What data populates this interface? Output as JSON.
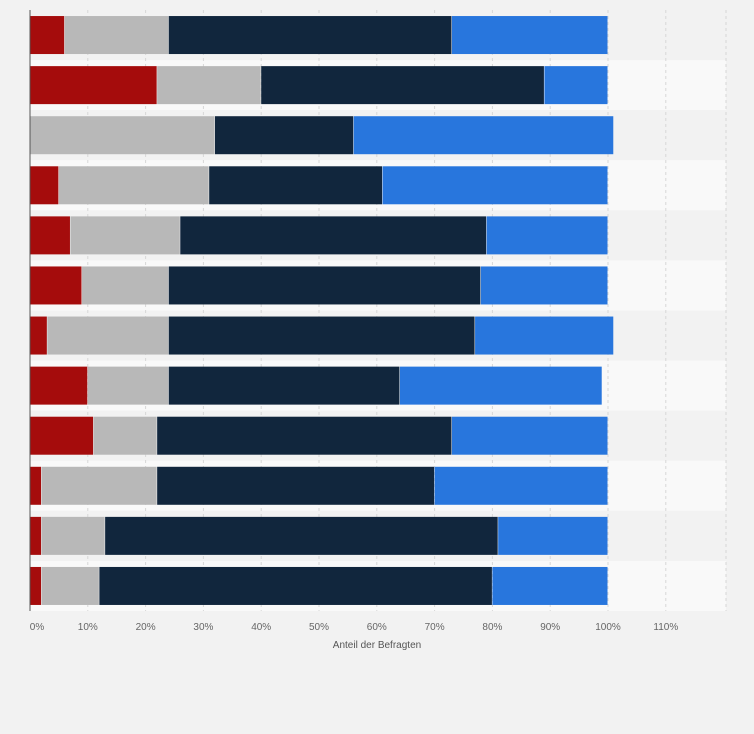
{
  "chart_data": {
    "type": "bar",
    "orientation": "horizontal",
    "stacked": true,
    "xlabel": "Anteil der Befragten",
    "xlim": [
      0,
      120
    ],
    "xticks": [
      0,
      10,
      20,
      30,
      40,
      50,
      60,
      70,
      80,
      90,
      100,
      110
    ],
    "tick_suffix": "%",
    "grid": true,
    "colors": [
      "#a50c0c",
      "#b8b8b8",
      "#11263d",
      "#2876dd"
    ],
    "series": [
      {
        "values": [
          6,
          22,
          0,
          5,
          7,
          9,
          3,
          10,
          11,
          2,
          2,
          2
        ]
      },
      {
        "values": [
          18,
          18,
          32,
          26,
          19,
          15,
          21,
          14,
          11,
          20,
          11,
          10
        ]
      },
      {
        "values": [
          49,
          49,
          24,
          30,
          53,
          54,
          53,
          40,
          51,
          48,
          68,
          68
        ]
      },
      {
        "values": [
          27,
          11,
          45,
          39,
          21,
          22,
          24,
          35,
          27,
          30,
          19,
          20
        ]
      }
    ]
  }
}
